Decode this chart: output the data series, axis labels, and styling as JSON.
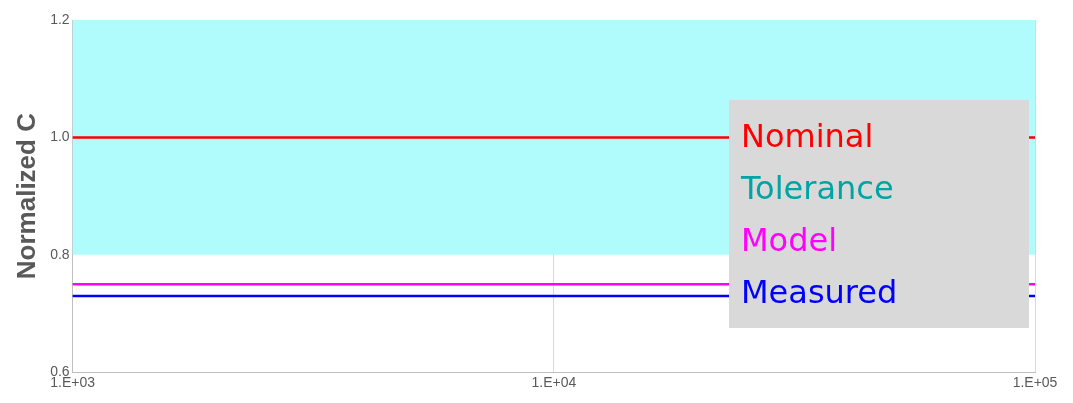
{
  "chart_data": {
    "type": "line",
    "ylabel": "Normalized C",
    "grid": "x",
    "legend": "right",
    "marker": "none",
    "line_style": "solid",
    "categories": [
      "1.E+03",
      "1.E+04",
      "1.E+05"
    ],
    "ylim": [
      0.6,
      1.2
    ],
    "yticks": [
      0.6,
      0.8,
      {
        "value": 1,
        "label": "1.0"
      },
      1.2
    ],
    "bands": [
      {
        "axis": "y",
        "from": 0.8,
        "to": 1.2,
        "label": "Tolerance",
        "color": "#b0fcfc"
      }
    ],
    "series": [
      {
        "name": "Nominal",
        "color": "#ff0000",
        "values": [
          1,
          1,
          1
        ]
      },
      {
        "name": "Model",
        "color": "#ff00ff",
        "values": [
          0.75,
          0.75,
          0.75
        ]
      },
      {
        "name": "Measured",
        "color": "#0000ff",
        "values": [
          0.73,
          0.73,
          0.73
        ]
      }
    ]
  }
}
